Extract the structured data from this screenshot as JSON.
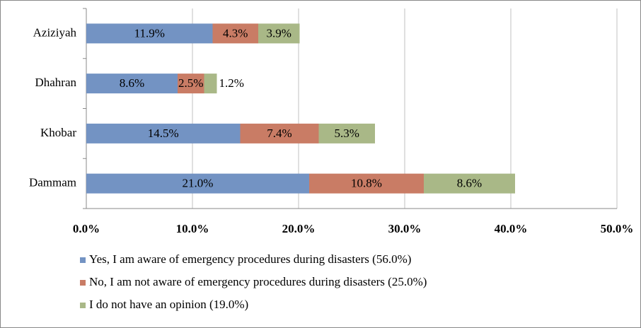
{
  "chart_data": {
    "type": "bar",
    "orientation": "horizontal",
    "stacked": true,
    "categories": [
      "Aziziyah",
      "Dhahran",
      "Khobar",
      "Dammam"
    ],
    "series": [
      {
        "name": "Yes, I am aware of emergency procedures during disasters (56.0%)",
        "color": "#7393c3",
        "values": [
          11.9,
          8.6,
          14.5,
          21.0
        ],
        "value_labels": [
          "11.9%",
          "8.6%",
          "14.5%",
          "21.0%"
        ]
      },
      {
        "name": "No, I am not aware of emergency procedures during disasters (25.0%)",
        "color": "#c97c65",
        "values": [
          4.3,
          2.5,
          7.4,
          10.8
        ],
        "value_labels": [
          "4.3%",
          "2.5%",
          "7.4%",
          "10.8%"
        ]
      },
      {
        "name": "I do not have an opinion (19.0%)",
        "color": "#a9b887",
        "values": [
          3.9,
          1.2,
          5.3,
          8.6
        ],
        "value_labels": [
          "3.9%",
          "1.2%",
          "5.3%",
          "8.6%"
        ]
      }
    ],
    "xlim": [
      0,
      50
    ],
    "xticks": [
      {
        "value": 0,
        "label": "0.0%"
      },
      {
        "value": 10,
        "label": "10.0%"
      },
      {
        "value": 20,
        "label": "20.0%"
      },
      {
        "value": 30,
        "label": "30.0%"
      },
      {
        "value": 40,
        "label": "40.0%"
      },
      {
        "value": 50,
        "label": "50.0%"
      }
    ],
    "grid": true,
    "legend": "bottom"
  }
}
